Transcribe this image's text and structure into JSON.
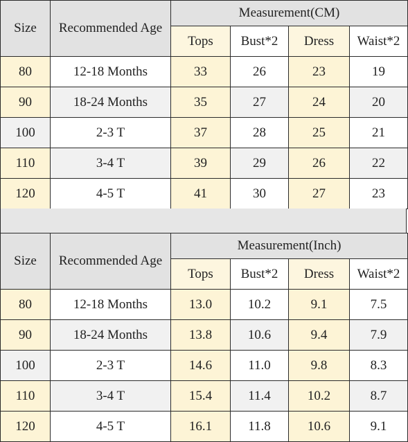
{
  "tables": [
    {
      "measurement_header": "Measurement(CM)",
      "size_header": "Size",
      "age_header": "Recommended Age",
      "columns": [
        "Tops",
        "Bust*2",
        "Dress",
        "Waist*2"
      ],
      "rows": [
        {
          "size": "80",
          "age": "12-18 Months",
          "tops": "33",
          "bust": "26",
          "dress": "23",
          "waist": "19"
        },
        {
          "size": "90",
          "age": "18-24 Months",
          "tops": "35",
          "bust": "27",
          "dress": "24",
          "waist": "20"
        },
        {
          "size": "100",
          "age": "2-3 T",
          "tops": "37",
          "bust": "28",
          "dress": "25",
          "waist": "21"
        },
        {
          "size": "110",
          "age": "3-4 T",
          "tops": "39",
          "bust": "29",
          "dress": "26",
          "waist": "22"
        },
        {
          "size": "120",
          "age": "4-5 T",
          "tops": "41",
          "bust": "30",
          "dress": "27",
          "waist": "23"
        }
      ]
    },
    {
      "measurement_header": "Measurement(Inch)",
      "size_header": "Size",
      "age_header": "Recommended Age",
      "columns": [
        "Tops",
        "Bust*2",
        "Dress",
        "Waist*2"
      ],
      "rows": [
        {
          "size": "80",
          "age": "12-18 Months",
          "tops": "13.0",
          "bust": "10.2",
          "dress": "9.1",
          "waist": "7.5"
        },
        {
          "size": "90",
          "age": "18-24 Months",
          "tops": "13.8",
          "bust": "10.6",
          "dress": "9.4",
          "waist": "7.9"
        },
        {
          "size": "100",
          "age": "2-3 T",
          "tops": "14.6",
          "bust": "11.0",
          "dress": "9.8",
          "waist": "8.3"
        },
        {
          "size": "110",
          "age": "3-4 T",
          "tops": "15.4",
          "bust": "11.4",
          "dress": "10.2",
          "waist": "8.7"
        },
        {
          "size": "120",
          "age": "4-5 T",
          "tops": "16.1",
          "bust": "11.8",
          "dress": "10.6",
          "waist": "9.1"
        }
      ]
    }
  ]
}
